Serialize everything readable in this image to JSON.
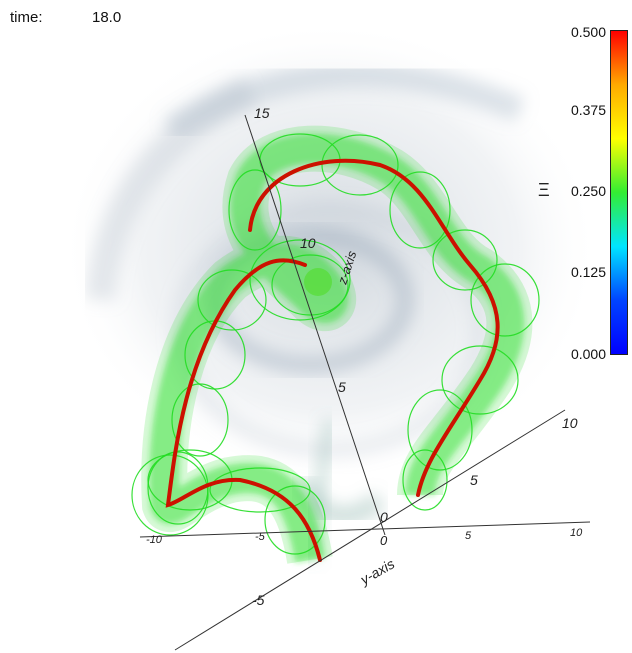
{
  "hud": {
    "time_label": "time:",
    "time_value": "18.0"
  },
  "colorbar": {
    "variable_glyph": "Ξ",
    "ticks": [
      "0.500",
      "0.375",
      "0.250",
      "0.125",
      "0.000"
    ],
    "range": [
      0.0,
      0.5
    ],
    "colors": [
      "#ff0000",
      "#ffaa00",
      "#ffff00",
      "#33ee33",
      "#00e5ff",
      "#0044ff",
      "#0000ff"
    ]
  },
  "axes": {
    "z_label": "z-axis",
    "y_label": "y-axis",
    "z_ticks": [
      "5",
      "10",
      "15"
    ],
    "x_ticks": [
      "5",
      "10",
      "-10",
      "-5",
      "0",
      "5",
      "10"
    ],
    "y_ticks": [
      "-5",
      "0"
    ]
  },
  "style": {
    "tube_color": "#22dd22",
    "core_color": "#cc1100",
    "background": "#ffffff"
  }
}
